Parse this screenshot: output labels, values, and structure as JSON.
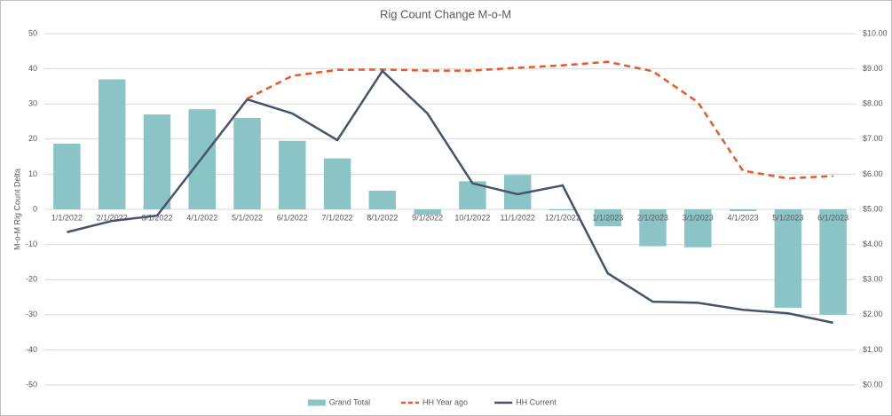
{
  "chart_data": {
    "type": "bar-line",
    "title": "Rig Count Change M-o-M",
    "y_label": "M-o-M Rig Count Delta",
    "categories": [
      "1/1/2022",
      "2/1/2022",
      "3/1/2022",
      "4/1/2022",
      "5/1/2022",
      "6/1/2022",
      "7/1/2022",
      "8/1/2022",
      "9/1/2022",
      "10/1/2022",
      "11/1/2022",
      "12/1/2022",
      "1/1/2023",
      "2/1/2023",
      "3/1/2023",
      "4/1/2023",
      "5/1/2023",
      "6/1/2023"
    ],
    "series": [
      {
        "name": "Grand Total",
        "type": "bar",
        "color": "#8bc4c6",
        "values": [
          18.7,
          37,
          27,
          28.5,
          26,
          19.5,
          14.5,
          5.3,
          -1.5,
          8,
          9.8,
          -0.3,
          -4.8,
          -10.5,
          -10.8,
          -0.5,
          -28,
          -30
        ]
      },
      {
        "name": "HH Year ago",
        "type": "line",
        "axis": "y2",
        "dashed": true,
        "color": "#e8582a",
        "values": [
          null,
          null,
          null,
          null,
          8.15,
          8.8,
          8.97,
          8.98,
          8.95,
          8.95,
          9.03,
          9.1,
          9.2,
          8.93,
          8.05,
          6.1,
          5.88,
          5.95
        ]
      },
      {
        "name": "HH Current",
        "type": "line",
        "axis": "y2",
        "dashed": false,
        "color": "#44546a",
        "values": [
          4.35,
          4.67,
          4.82,
          6.47,
          8.13,
          7.73,
          6.97,
          8.94,
          7.73,
          5.74,
          5.43,
          5.68,
          3.18,
          2.37,
          2.34,
          2.14,
          2.04,
          1.77
        ]
      }
    ],
    "ylim": [
      -50,
      50
    ],
    "yticks": [
      -50,
      -40,
      -30,
      -20,
      -10,
      0,
      10,
      20,
      30,
      40,
      50
    ],
    "y2lim": [
      0,
      10
    ],
    "y2ticks": [
      {
        "value": 0,
        "label": "$0.00"
      },
      {
        "value": 1,
        "label": "$1.00"
      },
      {
        "value": 2,
        "label": "$2.00"
      },
      {
        "value": 3,
        "label": "$3.00"
      },
      {
        "value": 4,
        "label": "$4.00"
      },
      {
        "value": 5,
        "label": "$5.00"
      },
      {
        "value": 6,
        "label": "$6.00"
      },
      {
        "value": 7,
        "label": "$7.00"
      },
      {
        "value": 8,
        "label": "$8.00"
      },
      {
        "value": 9,
        "label": "$9.00"
      },
      {
        "value": 10,
        "label": "$10.00"
      }
    ],
    "grid": true,
    "legend": "bottom"
  }
}
